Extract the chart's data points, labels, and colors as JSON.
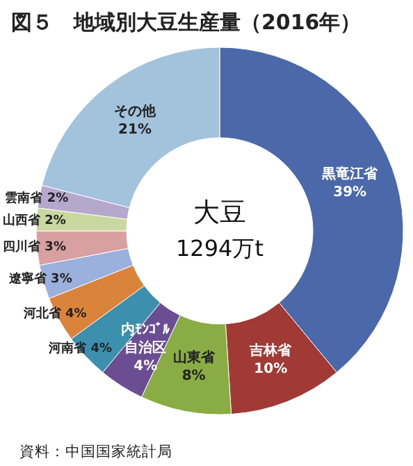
{
  "chart_data": {
    "type": "donut",
    "title": "図５　地域別大豆生産量（2016年）",
    "categories": [
      "黒竜江省",
      "吉林省",
      "山東省",
      "内ﾓﾝｺﾞﾙ自治区",
      "河南省",
      "河北省",
      "遼寧省",
      "四川省",
      "山西省",
      "雲南省",
      "その他"
    ],
    "values": [
      39,
      10,
      8,
      4,
      4,
      4,
      3,
      3,
      2,
      2,
      21
    ],
    "value_labels": [
      "39%",
      "10%",
      "8%",
      "4%",
      "4%",
      "4%",
      "3%",
      "3%",
      "2%",
      "2%",
      "21%"
    ],
    "colors": [
      "#4a68aa",
      "#a13a34",
      "#8aac45",
      "#6b4d93",
      "#3d8fae",
      "#d9843a",
      "#9bb0dc",
      "#d9a0a2",
      "#c8d89e",
      "#b6a8cc",
      "#a3c3dc"
    ],
    "annotations": [
      "大豆",
      "1294万t",
      "資料：中国国家統計局"
    ]
  }
}
